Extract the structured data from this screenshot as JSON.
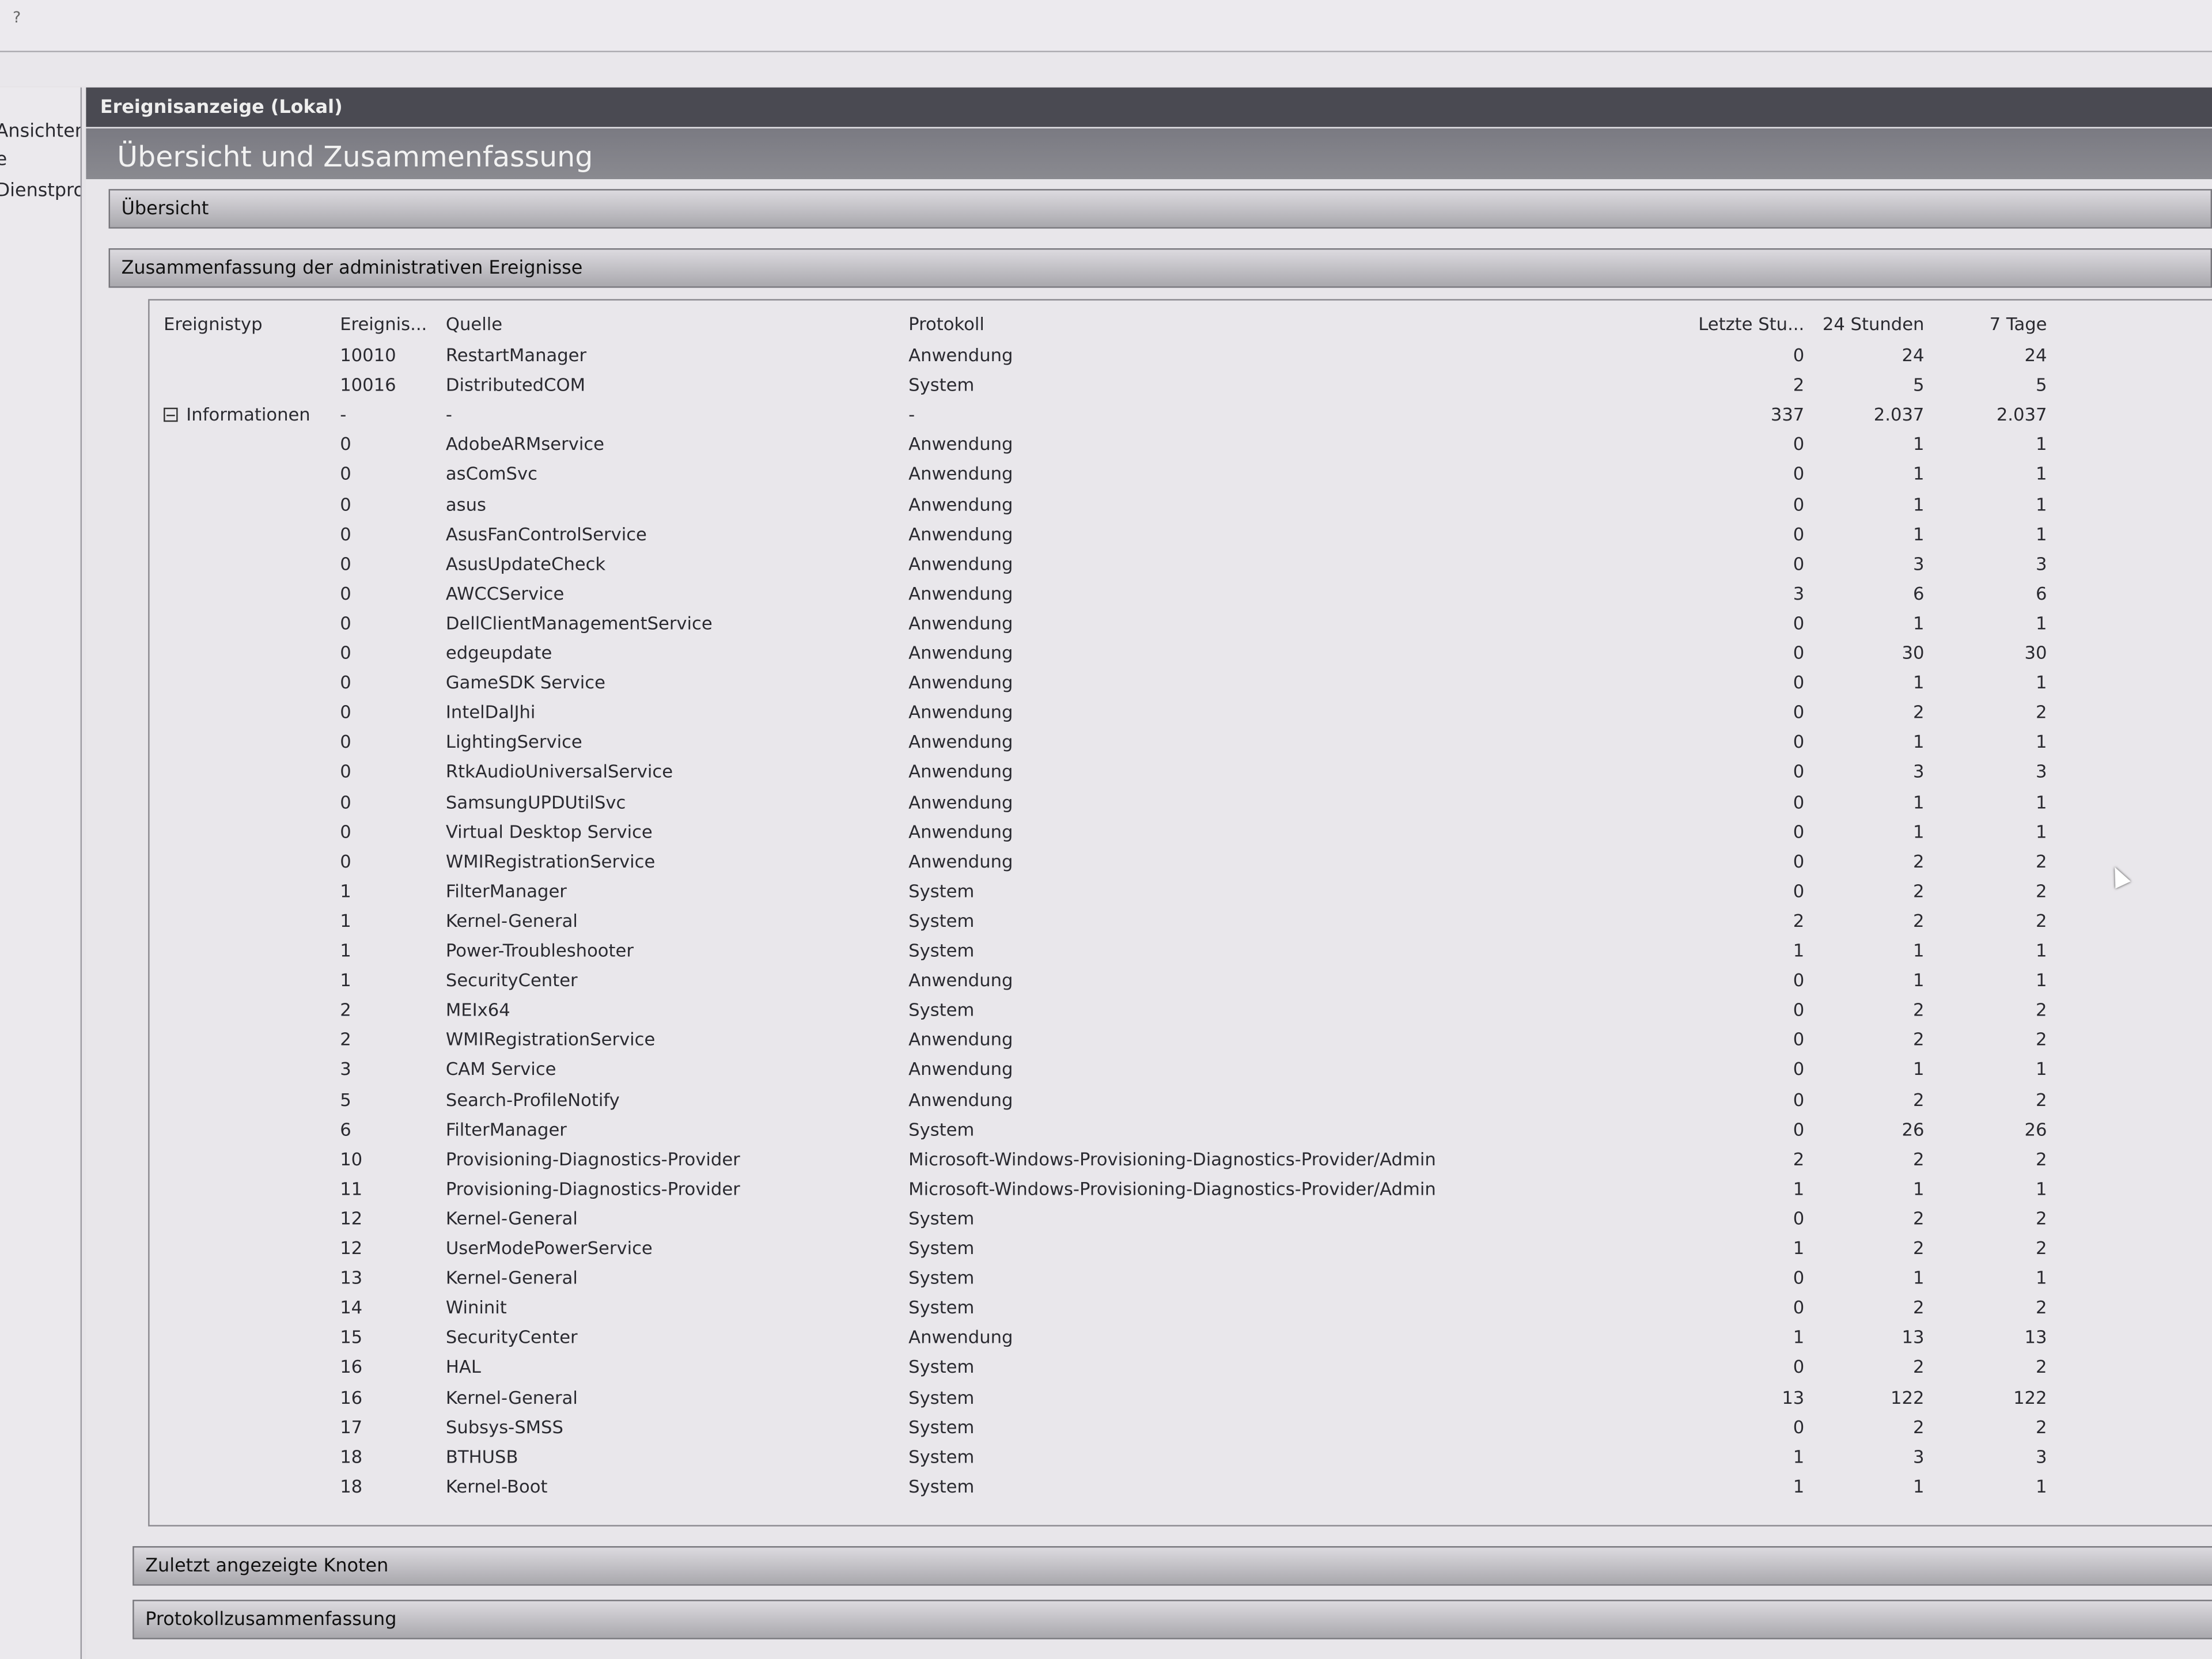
{
  "topbar": {
    "help": "?"
  },
  "left_pane": {
    "items": [
      "Ansichten",
      "e",
      "Dienstpro"
    ]
  },
  "main": {
    "header": "Ereignisanzeige (Lokal)",
    "title": "Übersicht und Zusammenfassung",
    "sections": {
      "overview": "Übersicht",
      "admin_summary": "Zusammenfassung der administrativen Ereignisse",
      "recent_nodes": "Zuletzt angezeigte Knoten",
      "log_summary": "Protokollzusammenfassung"
    }
  },
  "table": {
    "columns": [
      "Ereignistyp",
      "Ereignis...",
      "Quelle",
      "Protokoll",
      "Letzte Stu...",
      "24 Stunden",
      "7 Tage"
    ],
    "rows": [
      [
        "",
        "10010",
        "RestartManager",
        "Anwendung",
        "0",
        "24",
        "24"
      ],
      [
        "",
        "10016",
        "DistributedCOM",
        "System",
        "2",
        "5",
        "5"
      ],
      [
        "Informationen",
        "-",
        "-",
        "-",
        "337",
        "2.037",
        "2.037"
      ],
      [
        "",
        "0",
        "AdobeARMservice",
        "Anwendung",
        "0",
        "1",
        "1"
      ],
      [
        "",
        "0",
        "asComSvc",
        "Anwendung",
        "0",
        "1",
        "1"
      ],
      [
        "",
        "0",
        "asus",
        "Anwendung",
        "0",
        "1",
        "1"
      ],
      [
        "",
        "0",
        "AsusFanControlService",
        "Anwendung",
        "0",
        "1",
        "1"
      ],
      [
        "",
        "0",
        "AsusUpdateCheck",
        "Anwendung",
        "0",
        "3",
        "3"
      ],
      [
        "",
        "0",
        "AWCCService",
        "Anwendung",
        "3",
        "6",
        "6"
      ],
      [
        "",
        "0",
        "DellClientManagementService",
        "Anwendung",
        "0",
        "1",
        "1"
      ],
      [
        "",
        "0",
        "edgeupdate",
        "Anwendung",
        "0",
        "30",
        "30"
      ],
      [
        "",
        "0",
        "GameSDK Service",
        "Anwendung",
        "0",
        "1",
        "1"
      ],
      [
        "",
        "0",
        "IntelDalJhi",
        "Anwendung",
        "0",
        "2",
        "2"
      ],
      [
        "",
        "0",
        "LightingService",
        "Anwendung",
        "0",
        "1",
        "1"
      ],
      [
        "",
        "0",
        "RtkAudioUniversalService",
        "Anwendung",
        "0",
        "3",
        "3"
      ],
      [
        "",
        "0",
        "SamsungUPDUtilSvc",
        "Anwendung",
        "0",
        "1",
        "1"
      ],
      [
        "",
        "0",
        "Virtual Desktop Service",
        "Anwendung",
        "0",
        "1",
        "1"
      ],
      [
        "",
        "0",
        "WMIRegistrationService",
        "Anwendung",
        "0",
        "2",
        "2"
      ],
      [
        "",
        "1",
        "FilterManager",
        "System",
        "0",
        "2",
        "2"
      ],
      [
        "",
        "1",
        "Kernel-General",
        "System",
        "2",
        "2",
        "2"
      ],
      [
        "",
        "1",
        "Power-Troubleshooter",
        "System",
        "1",
        "1",
        "1"
      ],
      [
        "",
        "1",
        "SecurityCenter",
        "Anwendung",
        "0",
        "1",
        "1"
      ],
      [
        "",
        "2",
        "MEIx64",
        "System",
        "0",
        "2",
        "2"
      ],
      [
        "",
        "2",
        "WMIRegistrationService",
        "Anwendung",
        "0",
        "2",
        "2"
      ],
      [
        "",
        "3",
        "CAM Service",
        "Anwendung",
        "0",
        "1",
        "1"
      ],
      [
        "",
        "5",
        "Search-ProfileNotify",
        "Anwendung",
        "0",
        "2",
        "2"
      ],
      [
        "",
        "6",
        "FilterManager",
        "System",
        "0",
        "26",
        "26"
      ],
      [
        "",
        "10",
        "Provisioning-Diagnostics-Provider",
        "Microsoft-Windows-Provisioning-Diagnostics-Provider/Admin",
        "2",
        "2",
        "2"
      ],
      [
        "",
        "11",
        "Provisioning-Diagnostics-Provider",
        "Microsoft-Windows-Provisioning-Diagnostics-Provider/Admin",
        "1",
        "1",
        "1"
      ],
      [
        "",
        "12",
        "Kernel-General",
        "System",
        "0",
        "2",
        "2"
      ],
      [
        "",
        "12",
        "UserModePowerService",
        "System",
        "1",
        "2",
        "2"
      ],
      [
        "",
        "13",
        "Kernel-General",
        "System",
        "0",
        "1",
        "1"
      ],
      [
        "",
        "14",
        "Wininit",
        "System",
        "0",
        "2",
        "2"
      ],
      [
        "",
        "15",
        "SecurityCenter",
        "Anwendung",
        "1",
        "13",
        "13"
      ],
      [
        "",
        "16",
        "HAL",
        "System",
        "0",
        "2",
        "2"
      ],
      [
        "",
        "16",
        "Kernel-General",
        "System",
        "13",
        "122",
        "122"
      ],
      [
        "",
        "17",
        "Subsys-SMSS",
        "System",
        "0",
        "2",
        "2"
      ],
      [
        "",
        "18",
        "BTHUSB",
        "System",
        "1",
        "3",
        "3"
      ],
      [
        "",
        "18",
        "Kernel-Boot",
        "System",
        "1",
        "1",
        "1"
      ]
    ]
  }
}
